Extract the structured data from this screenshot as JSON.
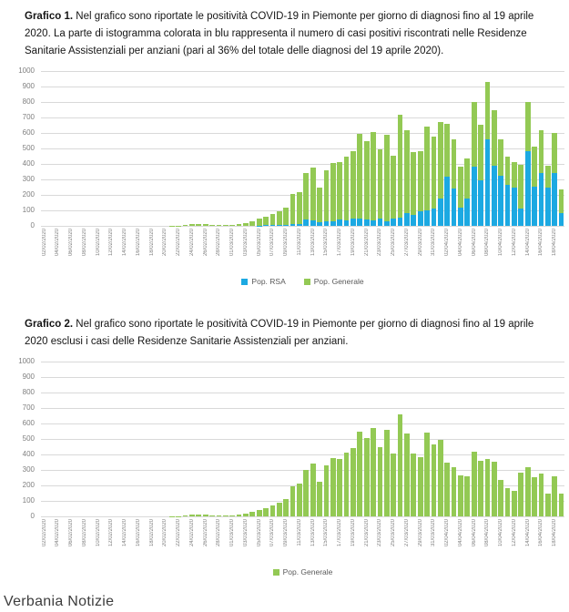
{
  "page": {
    "footer": "Verbania Notizie"
  },
  "captions": {
    "grafico1_label": "Grafico 1.",
    "grafico1_text": " Nel grafico sono riportate le positività COVID-19 in Piemonte per giorno di diagnosi fino al 19 aprile 2020. La parte di istogramma colorata in blu rappresenta il numero di casi positivi riscontrati nelle Residenze Sanitarie Assistenziali per anziani (pari al 36% del totale delle diagnosi del 19 aprile 2020).",
    "grafico2_label": "Grafico 2.",
    "grafico2_text": " Nel grafico sono riportate le positività COVID-19 in Piemonte per giorno di diagnosi fino al 19 aprile 2020 esclusi i casi delle Residenze Sanitarie Assistenziali per anziani."
  },
  "colors": {
    "rsa_blue": "#1ca9e2",
    "general_green": "#93c954",
    "grid": "#d9d9d9",
    "axis_text": "#7f7f7f"
  },
  "chart_data": [
    {
      "type": "bar",
      "stacked": true,
      "grid": true,
      "legend_position": "bottom",
      "ylim": [
        0,
        1000
      ],
      "ytick_step": 100,
      "x_tick_every": 2,
      "x": [
        "02/02/2020",
        "03/02/2020",
        "04/02/2020",
        "05/02/2020",
        "06/02/2020",
        "07/02/2020",
        "08/02/2020",
        "09/02/2020",
        "10/02/2020",
        "11/02/2020",
        "12/02/2020",
        "13/02/2020",
        "14/02/2020",
        "15/02/2020",
        "16/02/2020",
        "17/02/2020",
        "18/02/2020",
        "19/02/2020",
        "20/02/2020",
        "21/02/2020",
        "22/02/2020",
        "23/02/2020",
        "24/02/2020",
        "25/02/2020",
        "26/02/2020",
        "27/02/2020",
        "28/02/2020",
        "29/02/2020",
        "01/03/2020",
        "02/03/2020",
        "03/03/2020",
        "04/03/2020",
        "05/03/2020",
        "06/03/2020",
        "07/03/2020",
        "08/03/2020",
        "09/03/2020",
        "10/03/2020",
        "11/03/2020",
        "12/03/2020",
        "13/03/2020",
        "14/03/2020",
        "15/03/2020",
        "16/03/2020",
        "17/03/2020",
        "18/03/2020",
        "19/03/2020",
        "20/03/2020",
        "21/03/2020",
        "22/03/2020",
        "23/03/2020",
        "24/03/2020",
        "25/03/2020",
        "26/03/2020",
        "27/03/2020",
        "28/03/2020",
        "29/03/2020",
        "30/03/2020",
        "31/03/2020",
        "01/04/2020",
        "02/04/2020",
        "03/04/2020",
        "04/04/2020",
        "05/04/2020",
        "06/04/2020",
        "07/04/2020",
        "08/04/2020",
        "09/04/2020",
        "10/04/2020",
        "11/04/2020",
        "12/04/2020",
        "13/04/2020",
        "14/04/2020",
        "15/04/2020",
        "16/04/2020",
        "17/04/2020",
        "18/04/2020",
        "19/04/2020"
      ],
      "series": [
        {
          "name": "Pop. RSA",
          "color_key": "rsa_blue",
          "values": [
            0,
            0,
            0,
            0,
            0,
            0,
            0,
            0,
            0,
            0,
            0,
            0,
            0,
            0,
            0,
            0,
            0,
            0,
            0,
            0,
            0,
            0,
            0,
            0,
            0,
            0,
            0,
            0,
            0,
            0,
            0,
            0,
            3,
            5,
            5,
            5,
            8,
            10,
            10,
            40,
            35,
            25,
            30,
            30,
            40,
            35,
            45,
            50,
            40,
            35,
            45,
            30,
            50,
            55,
            80,
            70,
            95,
            100,
            110,
            175,
            315,
            240,
            115,
            175,
            380,
            295,
            560,
            390,
            325,
            265,
            245,
            110,
            480,
            255,
            340,
            245,
            340,
            85
          ]
        },
        {
          "name": "Pop. Generale",
          "color_key": "general_green",
          "values": [
            0,
            0,
            0,
            0,
            0,
            0,
            0,
            0,
            0,
            0,
            0,
            0,
            0,
            0,
            0,
            0,
            0,
            0,
            0,
            2,
            3,
            5,
            10,
            12,
            12,
            8,
            5,
            8,
            8,
            12,
            20,
            30,
            42,
            55,
            70,
            90,
            110,
            195,
            210,
            300,
            340,
            225,
            330,
            375,
            370,
            410,
            440,
            545,
            505,
            570,
            450,
            560,
            405,
            660,
            535,
            405,
            385,
            540,
            465,
            495,
            345,
            320,
            265,
            260,
            420,
            360,
            370,
            355,
            235,
            185,
            165,
            285,
            320,
            255,
            275,
            145,
            260,
            150
          ]
        }
      ]
    },
    {
      "type": "bar",
      "stacked": false,
      "grid": true,
      "legend_position": "bottom",
      "ylim": [
        0,
        1000
      ],
      "ytick_step": 100,
      "x_tick_every": 2,
      "x": [
        "02/02/2020",
        "03/02/2020",
        "04/02/2020",
        "05/02/2020",
        "06/02/2020",
        "07/02/2020",
        "08/02/2020",
        "09/02/2020",
        "10/02/2020",
        "11/02/2020",
        "12/02/2020",
        "13/02/2020",
        "14/02/2020",
        "15/02/2020",
        "16/02/2020",
        "17/02/2020",
        "18/02/2020",
        "19/02/2020",
        "20/02/2020",
        "21/02/2020",
        "22/02/2020",
        "23/02/2020",
        "24/02/2020",
        "25/02/2020",
        "26/02/2020",
        "27/02/2020",
        "28/02/2020",
        "29/02/2020",
        "01/03/2020",
        "02/03/2020",
        "03/03/2020",
        "04/03/2020",
        "05/03/2020",
        "06/03/2020",
        "07/03/2020",
        "08/03/2020",
        "09/03/2020",
        "10/03/2020",
        "11/03/2020",
        "12/03/2020",
        "13/03/2020",
        "14/03/2020",
        "15/03/2020",
        "16/03/2020",
        "17/03/2020",
        "18/03/2020",
        "19/03/2020",
        "20/03/2020",
        "21/03/2020",
        "22/03/2020",
        "23/03/2020",
        "24/03/2020",
        "25/03/2020",
        "26/03/2020",
        "27/03/2020",
        "28/03/2020",
        "29/03/2020",
        "30/03/2020",
        "31/03/2020",
        "01/04/2020",
        "02/04/2020",
        "03/04/2020",
        "04/04/2020",
        "05/04/2020",
        "06/04/2020",
        "07/04/2020",
        "08/04/2020",
        "09/04/2020",
        "10/04/2020",
        "11/04/2020",
        "12/04/2020",
        "13/04/2020",
        "14/04/2020",
        "15/04/2020",
        "16/04/2020",
        "17/04/2020",
        "18/04/2020",
        "19/04/2020"
      ],
      "series": [
        {
          "name": "Pop. Generale",
          "color_key": "general_green",
          "values": [
            0,
            0,
            0,
            0,
            0,
            0,
            0,
            0,
            0,
            0,
            0,
            0,
            0,
            0,
            0,
            0,
            0,
            0,
            0,
            2,
            3,
            5,
            10,
            12,
            12,
            8,
            5,
            8,
            8,
            12,
            20,
            30,
            42,
            55,
            70,
            90,
            110,
            195,
            210,
            300,
            340,
            225,
            330,
            375,
            370,
            410,
            440,
            545,
            505,
            570,
            450,
            560,
            405,
            660,
            535,
            405,
            385,
            540,
            465,
            495,
            345,
            320,
            265,
            260,
            420,
            360,
            370,
            355,
            235,
            185,
            165,
            285,
            320,
            255,
            275,
            145,
            260,
            150
          ]
        }
      ]
    }
  ]
}
